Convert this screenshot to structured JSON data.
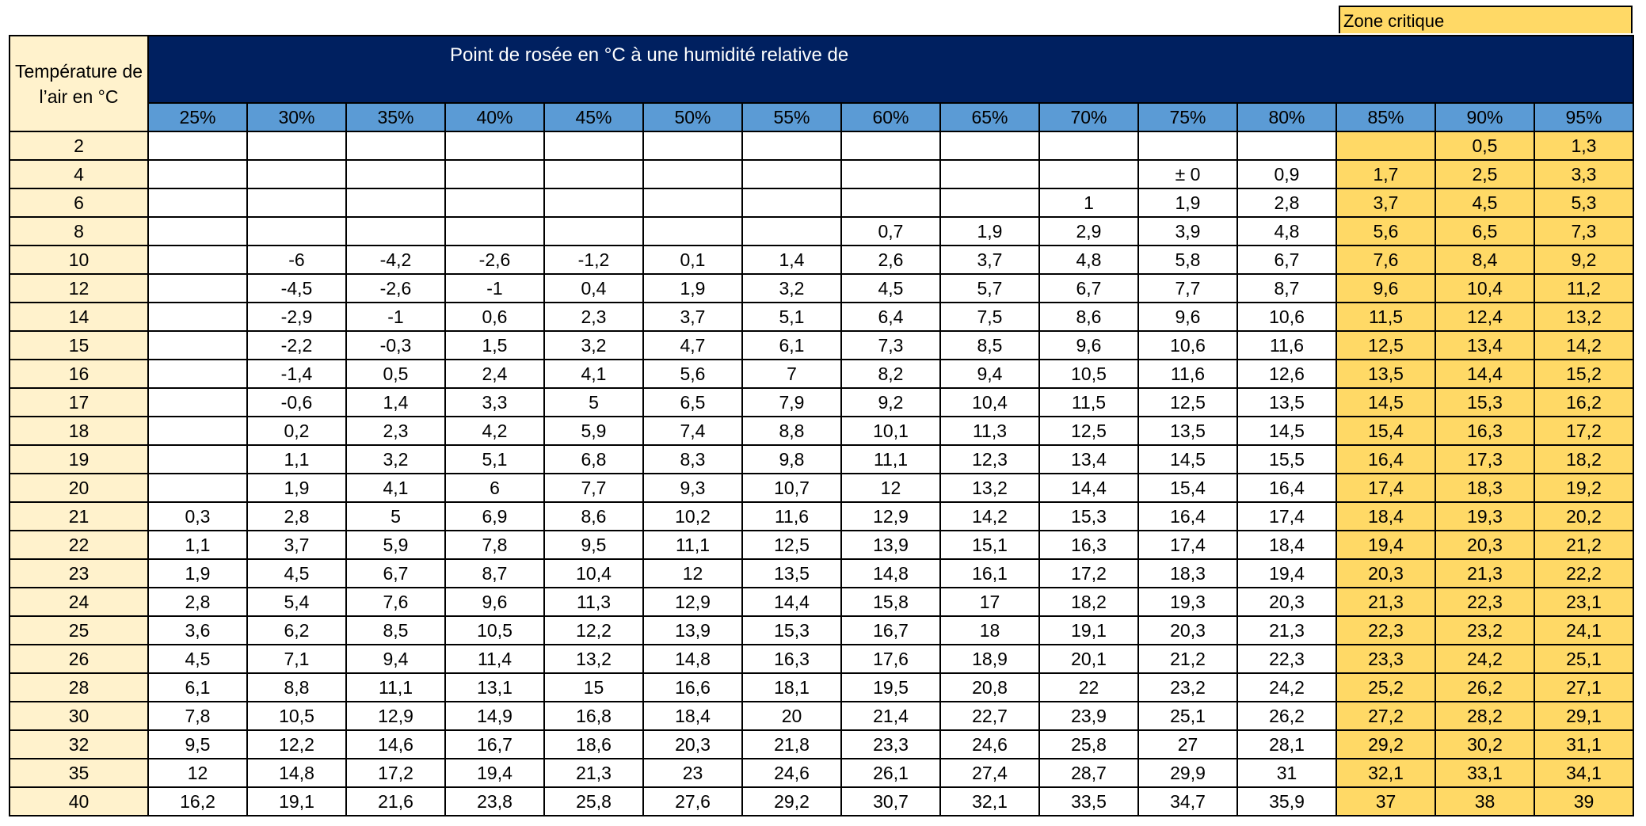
{
  "legend": {
    "label": "Zone critique"
  },
  "table": {
    "corner": "Température de l’air en °C",
    "title": "Point de rosée en °C à une humidité relative de",
    "columns": [
      "25%",
      "30%",
      "35%",
      "40%",
      "45%",
      "50%",
      "55%",
      "60%",
      "65%",
      "70%",
      "75%",
      "80%",
      "85%",
      "90%",
      "95%"
    ],
    "rows": [
      {
        "temp": "2",
        "cells": [
          null,
          null,
          null,
          null,
          null,
          null,
          null,
          null,
          null,
          null,
          null,
          null,
          null,
          "0,5",
          "1,3"
        ]
      },
      {
        "temp": "4",
        "cells": [
          null,
          null,
          null,
          null,
          null,
          null,
          null,
          null,
          null,
          null,
          "± 0",
          "0,9",
          "1,7",
          "2,5",
          "3,3"
        ]
      },
      {
        "temp": "6",
        "cells": [
          null,
          null,
          null,
          null,
          null,
          null,
          null,
          null,
          null,
          "1",
          "1,9",
          "2,8",
          "3,7",
          "4,5",
          "5,3"
        ]
      },
      {
        "temp": "8",
        "cells": [
          null,
          null,
          null,
          null,
          null,
          null,
          null,
          "0,7",
          "1,9",
          "2,9",
          "3,9",
          "4,8",
          "5,6",
          "6,5",
          "7,3"
        ]
      },
      {
        "temp": "10",
        "cells": [
          null,
          "-6",
          "-4,2",
          "-2,6",
          "-1,2",
          "0,1",
          "1,4",
          "2,6",
          "3,7",
          "4,8",
          "5,8",
          "6,7",
          "7,6",
          "8,4",
          "9,2"
        ]
      },
      {
        "temp": "12",
        "cells": [
          null,
          "-4,5",
          "-2,6",
          "-1",
          "0,4",
          "1,9",
          "3,2",
          "4,5",
          "5,7",
          "6,7",
          "7,7",
          "8,7",
          "9,6",
          "10,4",
          "11,2"
        ]
      },
      {
        "temp": "14",
        "cells": [
          null,
          "-2,9",
          "-1",
          "0,6",
          "2,3",
          "3,7",
          "5,1",
          "6,4",
          "7,5",
          "8,6",
          "9,6",
          "10,6",
          "11,5",
          "12,4",
          "13,2"
        ]
      },
      {
        "temp": "15",
        "cells": [
          null,
          "-2,2",
          "-0,3",
          "1,5",
          "3,2",
          "4,7",
          "6,1",
          "7,3",
          "8,5",
          "9,6",
          "10,6",
          "11,6",
          "12,5",
          "13,4",
          "14,2"
        ]
      },
      {
        "temp": "16",
        "cells": [
          null,
          "-1,4",
          "0,5",
          "2,4",
          "4,1",
          "5,6",
          "7",
          "8,2",
          "9,4",
          "10,5",
          "11,6",
          "12,6",
          "13,5",
          "14,4",
          "15,2"
        ]
      },
      {
        "temp": "17",
        "cells": [
          null,
          "-0,6",
          "1,4",
          "3,3",
          "5",
          "6,5",
          "7,9",
          "9,2",
          "10,4",
          "11,5",
          "12,5",
          "13,5",
          "14,5",
          "15,3",
          "16,2"
        ]
      },
      {
        "temp": "18",
        "cells": [
          null,
          "0,2",
          "2,3",
          "4,2",
          "5,9",
          "7,4",
          "8,8",
          "10,1",
          "11,3",
          "12,5",
          "13,5",
          "14,5",
          "15,4",
          "16,3",
          "17,2"
        ]
      },
      {
        "temp": "19",
        "cells": [
          null,
          "1,1",
          "3,2",
          "5,1",
          "6,8",
          "8,3",
          "9,8",
          "11,1",
          "12,3",
          "13,4",
          "14,5",
          "15,5",
          "16,4",
          "17,3",
          "18,2"
        ]
      },
      {
        "temp": "20",
        "cells": [
          null,
          "1,9",
          "4,1",
          "6",
          "7,7",
          "9,3",
          "10,7",
          "12",
          "13,2",
          "14,4",
          "15,4",
          "16,4",
          "17,4",
          "18,3",
          "19,2"
        ]
      },
      {
        "temp": "21",
        "cells": [
          "0,3",
          "2,8",
          "5",
          "6,9",
          "8,6",
          "10,2",
          "11,6",
          "12,9",
          "14,2",
          "15,3",
          "16,4",
          "17,4",
          "18,4",
          "19,3",
          "20,2"
        ]
      },
      {
        "temp": "22",
        "cells": [
          "1,1",
          "3,7",
          "5,9",
          "7,8",
          "9,5",
          "11,1",
          "12,5",
          "13,9",
          "15,1",
          "16,3",
          "17,4",
          "18,4",
          "19,4",
          "20,3",
          "21,2"
        ]
      },
      {
        "temp": "23",
        "cells": [
          "1,9",
          "4,5",
          "6,7",
          "8,7",
          "10,4",
          "12",
          "13,5",
          "14,8",
          "16,1",
          "17,2",
          "18,3",
          "19,4",
          "20,3",
          "21,3",
          "22,2"
        ]
      },
      {
        "temp": "24",
        "cells": [
          "2,8",
          "5,4",
          "7,6",
          "9,6",
          "11,3",
          "12,9",
          "14,4",
          "15,8",
          "17",
          "18,2",
          "19,3",
          "20,3",
          "21,3",
          "22,3",
          "23,1"
        ]
      },
      {
        "temp": "25",
        "cells": [
          "3,6",
          "6,2",
          "8,5",
          "10,5",
          "12,2",
          "13,9",
          "15,3",
          "16,7",
          "18",
          "19,1",
          "20,3",
          "21,3",
          "22,3",
          "23,2",
          "24,1"
        ]
      },
      {
        "temp": "26",
        "cells": [
          "4,5",
          "7,1",
          "9,4",
          "11,4",
          "13,2",
          "14,8",
          "16,3",
          "17,6",
          "18,9",
          "20,1",
          "21,2",
          "22,3",
          "23,3",
          "24,2",
          "25,1"
        ]
      },
      {
        "temp": "28",
        "cells": [
          "6,1",
          "8,8",
          "11,1",
          "13,1",
          "15",
          "16,6",
          "18,1",
          "19,5",
          "20,8",
          "22",
          "23,2",
          "24,2",
          "25,2",
          "26,2",
          "27,1"
        ]
      },
      {
        "temp": "30",
        "cells": [
          "7,8",
          "10,5",
          "12,9",
          "14,9",
          "16,8",
          "18,4",
          "20",
          "21,4",
          "22,7",
          "23,9",
          "25,1",
          "26,2",
          "27,2",
          "28,2",
          "29,1"
        ]
      },
      {
        "temp": "32",
        "cells": [
          "9,5",
          "12,2",
          "14,6",
          "16,7",
          "18,6",
          "20,3",
          "21,8",
          "23,3",
          "24,6",
          "25,8",
          "27",
          "28,1",
          "29,2",
          "30,2",
          "31,1"
        ]
      },
      {
        "temp": "35",
        "cells": [
          "12",
          "14,8",
          "17,2",
          "19,4",
          "21,3",
          "23",
          "24,6",
          "26,1",
          "27,4",
          "28,7",
          "29,9",
          "31",
          "32,1",
          "33,1",
          "34,1"
        ]
      },
      {
        "temp": "40",
        "cells": [
          "16,2",
          "19,1",
          "21,6",
          "23,8",
          "25,8",
          "27,6",
          "29,2",
          "30,7",
          "32,1",
          "33,5",
          "34,7",
          "35,9",
          "37",
          "38",
          "39"
        ]
      }
    ]
  }
}
